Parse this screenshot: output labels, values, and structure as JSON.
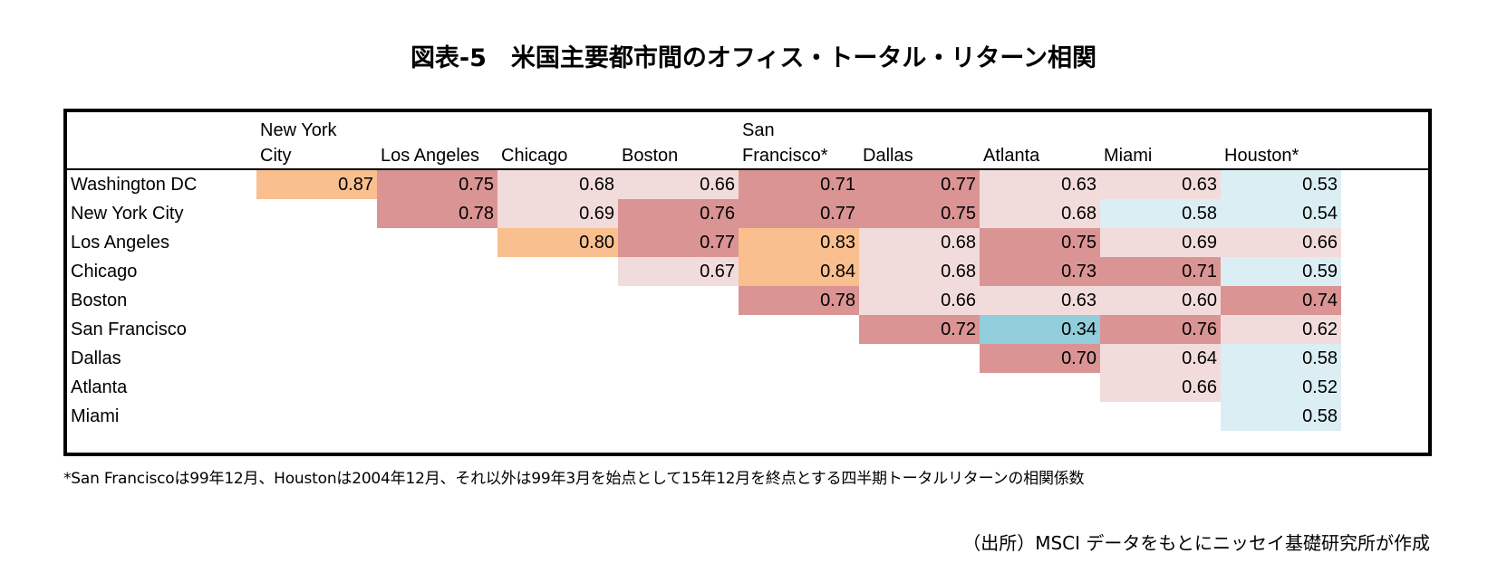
{
  "title": "図表-5　米国主要都市間のオフィス・トータル・リターン相関",
  "chart_data": {
    "type": "table",
    "columns": [
      "New York\nCity",
      "Los Angeles",
      "Chicago",
      "Boston",
      "San\nFrancisco*",
      "Dallas",
      "Atlanta",
      "Miami",
      "Houston*"
    ],
    "rows": [
      {
        "label": "Washington DC",
        "values": [
          "0.87",
          "0.75",
          "0.68",
          "0.66",
          "0.71",
          "0.77",
          "0.63",
          "0.63",
          "0.53"
        ]
      },
      {
        "label": "New York City",
        "values": [
          "",
          "0.78",
          "0.69",
          "0.76",
          "0.77",
          "0.75",
          "0.68",
          "0.58",
          "0.54"
        ]
      },
      {
        "label": "Los Angeles",
        "values": [
          "",
          "",
          "0.80",
          "0.77",
          "0.83",
          "0.68",
          "0.75",
          "0.69",
          "0.66"
        ]
      },
      {
        "label": "Chicago",
        "values": [
          "",
          "",
          "",
          "0.67",
          "0.84",
          "0.68",
          "0.73",
          "0.71",
          "0.59"
        ]
      },
      {
        "label": "Boston",
        "values": [
          "",
          "",
          "",
          "",
          "0.78",
          "0.66",
          "0.63",
          "0.60",
          "0.74"
        ]
      },
      {
        "label": "San Francisco",
        "values": [
          "",
          "",
          "",
          "",
          "",
          "0.72",
          "0.34",
          "0.76",
          "0.62"
        ]
      },
      {
        "label": "Dallas",
        "values": [
          "",
          "",
          "",
          "",
          "",
          "",
          "0.70",
          "0.64",
          "0.58"
        ]
      },
      {
        "label": "Atlanta",
        "values": [
          "",
          "",
          "",
          "",
          "",
          "",
          "",
          "0.66",
          "0.52"
        ]
      },
      {
        "label": "Miami",
        "values": [
          "",
          "",
          "",
          "",
          "",
          "",
          "",
          "",
          "0.58"
        ]
      }
    ],
    "color_thresholds": [
      {
        "min": 0.8,
        "color": "#f9bf8e"
      },
      {
        "min": 0.7,
        "color": "#da9494"
      },
      {
        "min": 0.6,
        "color": "#f2dcdb"
      },
      {
        "min": 0.5,
        "color": "#dbeef3"
      },
      {
        "min": 0.0,
        "color": "#92cddc"
      }
    ]
  },
  "footnote": "*San Franciscoは99年12月、Houstonは2004年12月、それ以外は99年3月を始点として15年12月を終点とする四半期トータルリターンの相関係数",
  "source": "（出所）MSCI データをもとにニッセイ基礎研究所が作成"
}
